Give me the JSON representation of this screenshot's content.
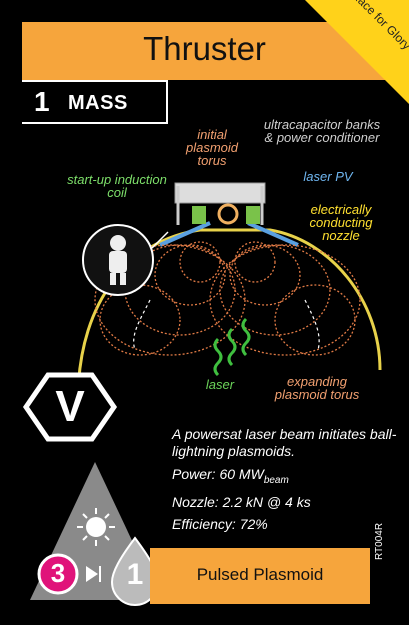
{
  "card": {
    "title": "Thruster",
    "corner_text": "Race for Glory",
    "mass_value": "1",
    "mass_label": "MASS",
    "name": "Pulsed Plasmoid",
    "code": "RT004R",
    "type_symbol": "V",
    "fuel_step": "3",
    "thrust_value": "1",
    "colors": {
      "orange": "#f6a53c",
      "yellow": "#ffd21a",
      "magenta": "#e0137a",
      "gray": "#8a8a8a"
    }
  },
  "diagram": {
    "labels": {
      "initial_plasmoid": "initial plasmoid torus",
      "ultracapacitor": "ultracapacitor banks & power conditioner",
      "laser_pv": "laser PV",
      "nozzle": "electrically conducting nozzle",
      "induction_coil": "start-up induction coil",
      "laser": "laser",
      "expanding": "expanding plasmoid torus"
    }
  },
  "description": {
    "lead": "A powersat laser beam initiates ball-lightning plasmoids.",
    "power_label": "Power: 60 MW",
    "power_sub": "beam",
    "nozzle": "Nozzle: 2.2 kN @ 4 ks",
    "efficiency": "Efficiency: 72%"
  },
  "icons": [
    "astronaut-icon",
    "sun-icon",
    "drop-icon",
    "hexagon-icon",
    "arrow-icon"
  ]
}
